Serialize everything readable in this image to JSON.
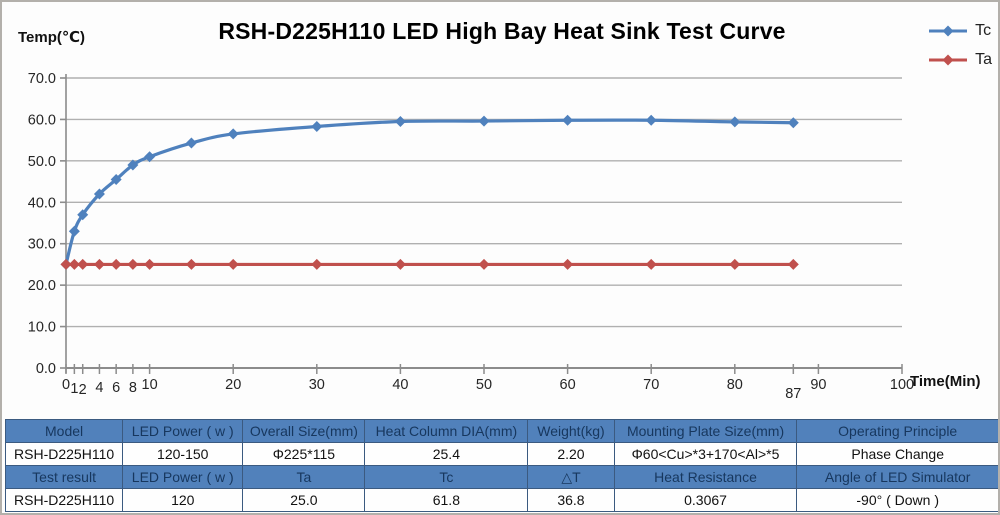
{
  "chart_data": {
    "type": "line",
    "title": "RSH-D225H110 LED High Bay Heat Sink Test Curve",
    "xlabel": "Time(Min)",
    "ylabel": "Temp(℃)",
    "x": [
      0,
      1,
      2,
      4,
      6,
      8,
      10,
      15,
      20,
      30,
      40,
      50,
      60,
      70,
      80,
      87
    ],
    "series": [
      {
        "name": "Tc",
        "color": "#4f81bd",
        "values": [
          25,
          33,
          37,
          42,
          45.5,
          49,
          51,
          54.3,
          56.5,
          58.3,
          59.5,
          59.6,
          59.8,
          59.8,
          59.4,
          59.2
        ]
      },
      {
        "name": "Ta",
        "color": "#c0504d",
        "values": [
          25,
          25,
          25,
          25,
          25,
          25,
          25,
          25,
          25,
          25,
          25,
          25,
          25,
          25,
          25,
          25
        ]
      }
    ],
    "xlim": [
      0,
      100
    ],
    "ylim": [
      0,
      70
    ],
    "x_ticks": [
      0,
      1,
      2,
      4,
      6,
      8,
      10,
      20,
      30,
      40,
      50,
      60,
      70,
      80,
      87,
      90,
      100
    ],
    "x_tick_dy": {
      "1": 4,
      "2": 5,
      "4": 3,
      "6": 3,
      "8": 3,
      "87": 9
    },
    "y_ticks": [
      0,
      10,
      20,
      30,
      40,
      50,
      60,
      70
    ],
    "grid": true,
    "legend_position": "top-right",
    "grid_color": "#b0b0b0",
    "axis_color": "#8c8c8c",
    "tick_text_color": "#262626"
  },
  "table": {
    "rows": [
      {
        "cells": [
          "Model",
          "LED Power ( w )",
          "Overall Size(mm)",
          "Heat Column DIA(mm)",
          "Weight(kg)",
          "Mounting Plate Size(mm)",
          "Operating Principle"
        ]
      },
      {
        "cells": [
          "RSH-D225H110",
          "120-150",
          "Φ225*115",
          "25.4",
          "2.20",
          "Φ60<Cu>*3+170<Al>*5",
          "Phase Change"
        ]
      },
      {
        "cells": [
          "Test result",
          "LED Power ( w )",
          "Ta",
          "Tc",
          "△T",
          "Heat Resistance",
          "Angle of LED Simulator"
        ]
      },
      {
        "cells": [
          "RSH-D225H110",
          "120",
          "25.0",
          "61.8",
          "36.8",
          "0.3067",
          "-90° ( Down )"
        ]
      }
    ]
  }
}
